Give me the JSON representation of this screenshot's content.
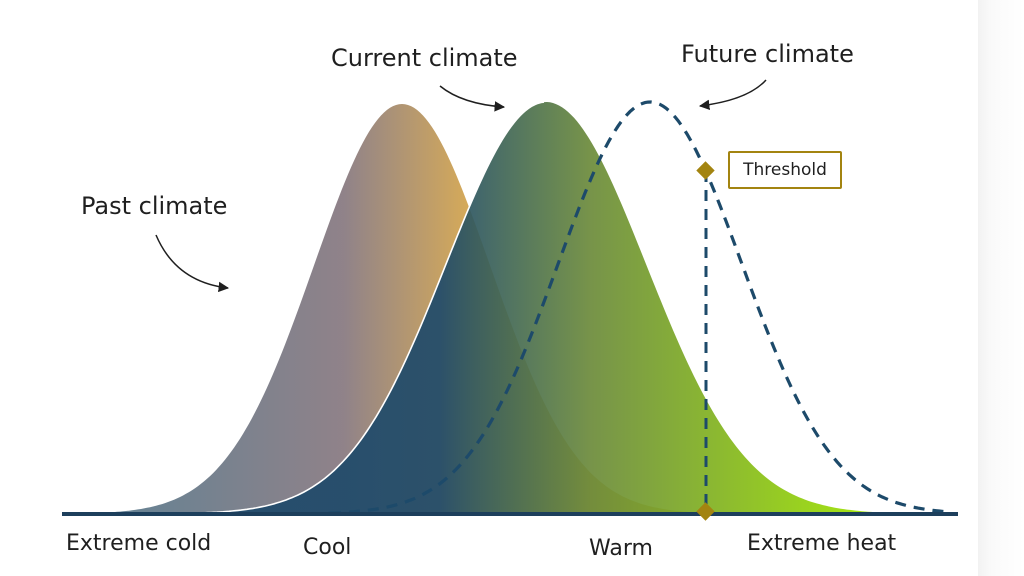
{
  "labels": {
    "current_climate": "Current climate",
    "future_climate": "Future climate",
    "past_climate": "Past climate",
    "threshold": "Threshold"
  },
  "axis": {
    "extreme_cold": "Extreme cold",
    "cool": "Cool",
    "warm": "Warm",
    "extreme_heat": "Extreme heat"
  },
  "colors": {
    "past_fill_start": "#5b7b8e",
    "past_fill_mid": "#8a7c83",
    "past_fill_end": "#d4a650",
    "current_fill_start": "#1f4a6a",
    "current_fill_mid": "#6b8a3a",
    "current_fill_end": "#9be000",
    "future_line": "#1d4a6a",
    "threshold_marker": "#a38410",
    "baseline": "#1d3f5c"
  }
}
